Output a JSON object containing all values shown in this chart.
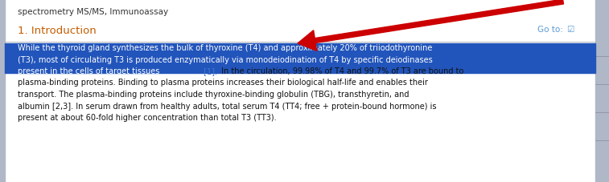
{
  "bg_color": "#ffffff",
  "top_text": "spectrometry MS/MS, Immunoassay",
  "top_text_color": "#333333",
  "section_title": "1. Introduction",
  "section_title_color": "#c45c00",
  "goto_text": "Go to:",
  "goto_color": "#5b9bd5",
  "divider_color": "#bbbbbb",
  "highlight_bg": "#2255bb",
  "highlight_text_color": "#ffffff",
  "highlight_line1": "While the thyroid gland synthesizes the bulk of thyroxine (T4) and approximately 20% of triiodothyronine",
  "highlight_line2": "(T3), most of circulating T3 is produced enzymatically via monodeiodination of T4 by specific deiodinases",
  "highlight_line3_blue": "present in the cells of target tissues",
  "ref1_text": " [1].",
  "ref1_color": "#4477cc",
  "rest_line3": " In the circulation, 99.98% of T4 and 99.7% of T3 are bound to",
  "rest_line4": "plasma-binding proteins. Binding to plasma proteins increases their biological half-life and enables their",
  "rest_line5": "transport. The plasma-binding proteins include thyroxine-binding globulin (TBG), transthyretin, and",
  "rest_line6": "albumin [2,3]. In serum drawn from healthy adults, total serum T4 (TT4; free + protein-bound hormone) is",
  "rest_line7": "present at about 60-fold higher concentration than total T3 (TT3).",
  "normal_text_color": "#111111",
  "arrow_color": "#cc0000",
  "right_bar_color": "#b0b8c8",
  "left_bar_color": "#b0b8c8",
  "figsize": [
    7.57,
    2.27
  ],
  "dpi": 100
}
